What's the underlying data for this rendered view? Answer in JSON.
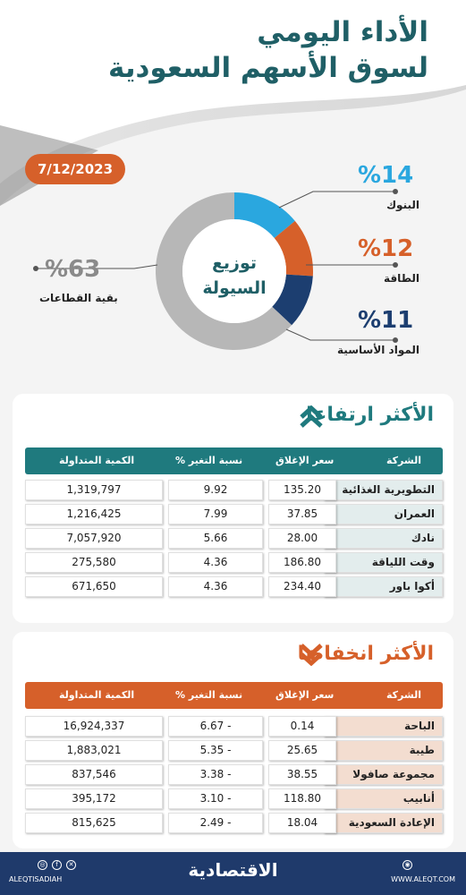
{
  "header": {
    "title_line1": "الأداء اليومي",
    "title_line2": "لسوق الأسهم السعودية",
    "date": "7/12/2023"
  },
  "liquidity": {
    "center_line1": "توزيع",
    "center_line2": "السيولة",
    "segments": [
      {
        "pct_label": "%14",
        "name": "البنوك",
        "value": 14,
        "color": "#2aa7df"
      },
      {
        "pct_label": "%12",
        "name": "الطاقة",
        "value": 12,
        "color": "#d6602a"
      },
      {
        "pct_label": "%11",
        "name": "المواد الأساسية",
        "value": 11,
        "color": "#1c3e70"
      },
      {
        "pct_label": "%63",
        "name": "بقية القطاعات",
        "value": 63,
        "color": "#b7b7b7"
      }
    ]
  },
  "gainers": {
    "title": "الأكثر ارتفاعا",
    "accent": "#1f7a7e",
    "headers": {
      "company": "الشركة",
      "close": "سعر الإغلاق",
      "change": "نسبة التغير %",
      "volume": "الكمية المتداولة"
    },
    "rows": [
      {
        "company": "التطويرية الغذائية",
        "close": "135.20",
        "change": "9.92",
        "volume": "1,319,797"
      },
      {
        "company": "العمران",
        "close": "37.85",
        "change": "7.99",
        "volume": "1,216,425"
      },
      {
        "company": "نادك",
        "close": "28.00",
        "change": "5.66",
        "volume": "7,057,920"
      },
      {
        "company": "وقت اللياقة",
        "close": "186.80",
        "change": "4.36",
        "volume": "275,580"
      },
      {
        "company": "أكوا باور",
        "close": "234.40",
        "change": "4.36",
        "volume": "671,650"
      }
    ]
  },
  "losers": {
    "title": "الأكثر انخفاضا",
    "accent": "#d6602a",
    "headers": {
      "company": "الشركة",
      "close": "سعر الإغلاق",
      "change": "نسبة التغير %",
      "volume": "الكمية المتداولة"
    },
    "rows": [
      {
        "company": "الباحة",
        "close": "0.14",
        "change": "6.67 -",
        "volume": "16,924,337"
      },
      {
        "company": "طيبة",
        "close": "25.65",
        "change": "5.35 -",
        "volume": "1,883,021"
      },
      {
        "company": "مجموعة صافولا",
        "close": "38.55",
        "change": "3.38 -",
        "volume": "837,546"
      },
      {
        "company": "أنابيب",
        "close": "118.80",
        "change": "3.10 -",
        "volume": "395,172"
      },
      {
        "company": "الإعادة السعودية",
        "close": "18.04",
        "change": "2.49 -",
        "volume": "815,625"
      }
    ]
  },
  "footer": {
    "brand": "الاقتصادية",
    "handle": "ALEQTISADIAH",
    "website": "WWW.ALEQT.COM",
    "icons": [
      "instagram-icon",
      "facebook-icon",
      "x-icon",
      "web-icon"
    ]
  }
}
